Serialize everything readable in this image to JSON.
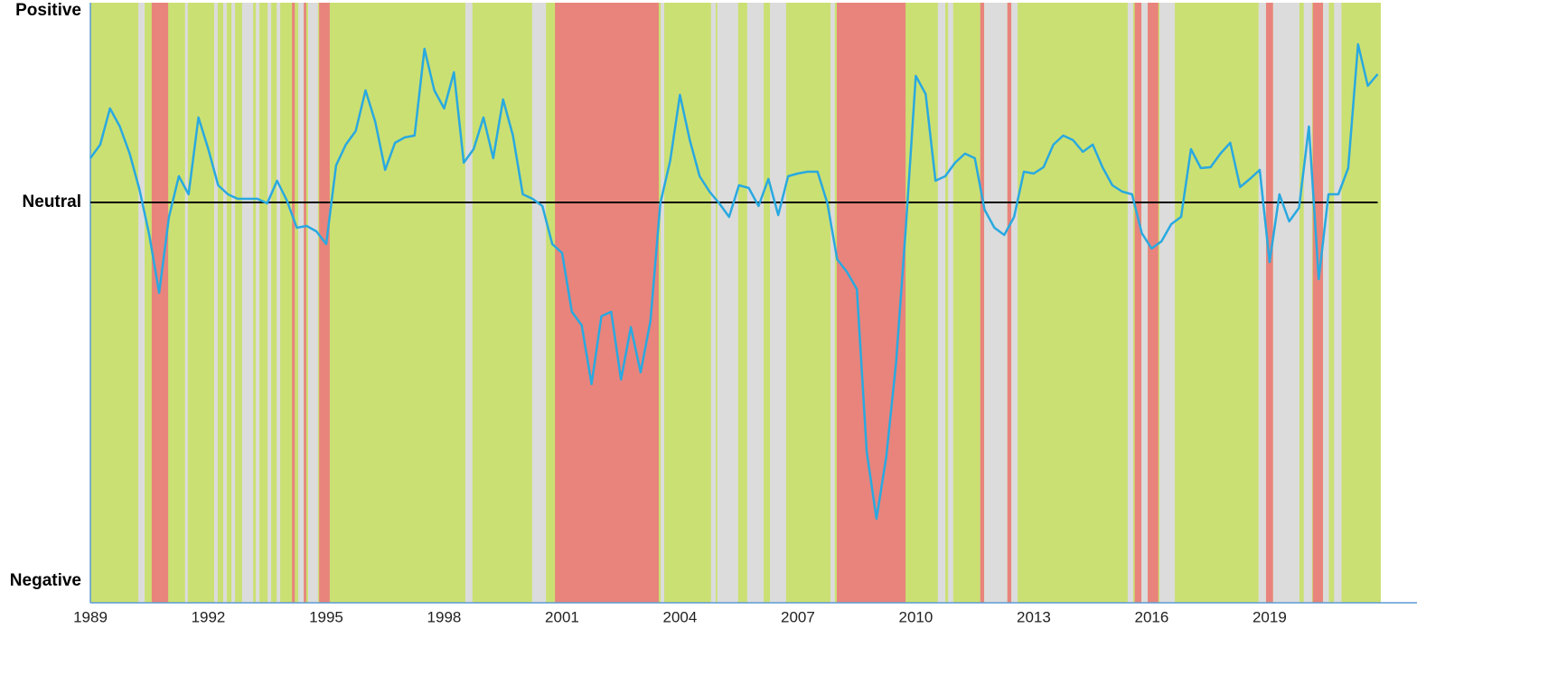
{
  "chart_data": {
    "type": "line",
    "x": [
      1989,
      1989.25,
      1989.5,
      1989.75,
      1990,
      1990.25,
      1990.5,
      1990.75,
      1991,
      1991.25,
      1991.5,
      1991.75,
      1992,
      1992.25,
      1992.5,
      1992.75,
      1993,
      1993.25,
      1993.5,
      1993.75,
      1994,
      1994.25,
      1994.5,
      1994.75,
      1995,
      1995.25,
      1995.5,
      1995.75,
      1996,
      1996.25,
      1996.5,
      1996.75,
      1997,
      1997.25,
      1997.5,
      1997.75,
      1998,
      1998.25,
      1998.5,
      1998.75,
      1999,
      1999.25,
      1999.5,
      1999.75,
      2000,
      2000.25,
      2000.5,
      2000.75,
      2001,
      2001.25,
      2001.5,
      2001.75,
      2002,
      2002.25,
      2002.5,
      2002.75,
      2003,
      2003.25,
      2003.5,
      2003.75,
      2004,
      2004.25,
      2004.5,
      2004.75,
      2005,
      2005.25,
      2005.5,
      2005.75,
      2006,
      2006.25,
      2006.5,
      2006.75,
      2007,
      2007.25,
      2007.5,
      2007.75,
      2008,
      2008.25,
      2008.5,
      2008.75,
      2009,
      2009.25,
      2009.5,
      2009.75,
      2010,
      2010.25,
      2010.5,
      2010.75,
      2011,
      2011.25,
      2011.5,
      2011.75,
      2012,
      2012.25,
      2012.5,
      2012.75,
      2013,
      2013.25,
      2013.5,
      2013.75,
      2014,
      2014.25,
      2014.5,
      2014.75,
      2015,
      2015.25,
      2015.5,
      2015.75,
      2016,
      2016.25,
      2016.5,
      2016.75,
      2017,
      2017.25,
      2017.5,
      2017.75,
      2018,
      2018.25,
      2018.5,
      2018.75,
      2019,
      2019.25,
      2019.5,
      2019.75,
      2020,
      2020.25,
      2020.5,
      2020.75,
      2021,
      2021.25,
      2021.5,
      2021.75
    ],
    "series": [
      {
        "color": "#29a9e0",
        "values": [
          49,
          64,
          104,
          84,
          54,
          14,
          -36,
          -100,
          -16,
          29,
          9,
          94,
          59,
          19,
          9,
          4,
          4,
          4,
          -1,
          24,
          2,
          -28,
          -26,
          -32,
          -46,
          41,
          64,
          79,
          124,
          89,
          36,
          66,
          72,
          74,
          170,
          124,
          104,
          144,
          44,
          59,
          94,
          49,
          114,
          74,
          9,
          4,
          -4,
          -46,
          -56,
          -121,
          -136,
          -201,
          -126,
          -121,
          -196,
          -138,
          -188,
          -131,
          -1,
          46,
          119,
          69,
          29,
          12,
          -1,
          -16,
          19,
          16,
          -4,
          26,
          -14,
          29,
          32,
          34,
          34,
          -1,
          -63,
          -77,
          -96,
          -276,
          -350,
          -281,
          -176,
          -26,
          140,
          120,
          24,
          29,
          44,
          54,
          49,
          -8,
          -28,
          -36,
          -16,
          34,
          32,
          39,
          64,
          74,
          69,
          56,
          64,
          39,
          19,
          12,
          9,
          -34,
          -51,
          -43,
          -24,
          -16,
          59,
          38,
          39,
          54,
          66,
          17,
          26,
          36,
          -66,
          9,
          -21,
          -6,
          84,
          -85,
          9,
          9,
          38,
          175,
          129,
          142
        ]
      }
    ],
    "bands": {
      "x0": [
        1989,
        1990.22,
        1990.56,
        1991.41,
        1992.15,
        1992.38,
        1992.59,
        1992.86,
        1993.21,
        1993.51,
        1993.74,
        1994.13,
        1994.29,
        1994.43,
        1994.54,
        1994.82,
        1998.54,
        2000.24,
        2000.82,
        2003.51,
        2004.79,
        2004.95,
        2005.71,
        2006.29,
        2007.83,
        2007.99,
        2010.56,
        2010.82,
        2011.64,
        2011.74,
        2012.33,
        2012.43,
        2015.39,
        2015.57,
        2015.74,
        2015.9,
        2016.2,
        2018.72,
        2018.91,
        2019.09,
        2019.87,
        2020.1,
        2020.36,
        2020.64
      ],
      "x1": [
        2021.83,
        1990.38,
        1990.98,
        1991.48,
        1992.24,
        1992.47,
        1992.68,
        1993.14,
        1993.3,
        1993.6,
        1993.83,
        1994.2,
        1994.43,
        1994.49,
        1994.79,
        1995.09,
        1998.72,
        2000.59,
        2003.46,
        2003.6,
        2004.91,
        2005.48,
        2006.13,
        2006.7,
        2007.94,
        2009.74,
        2010.75,
        2010.95,
        2011.74,
        2012.33,
        2012.43,
        2012.59,
        2015.53,
        2015.74,
        2015.9,
        2016.17,
        2016.59,
        2018.91,
        2019.09,
        2019.76,
        2020.08,
        2020.36,
        2020.51,
        2020.83
      ],
      "colors": [
        "#cbe073",
        "#dcdcdc",
        "#e8847c",
        "#dcdcdc",
        "#dcdcdc",
        "#dcdcdc",
        "#dcdcdc",
        "#dcdcdc",
        "#dcdcdc",
        "#dcdcdc",
        "#dcdcdc",
        "#e8847c",
        "#dcdcdc",
        "#e8847c",
        "#dcdcdc",
        "#e8847c",
        "#dcdcdc",
        "#dcdcdc",
        "#e8847c",
        "#dcdcdc",
        "#dcdcdc",
        "#dcdcdc",
        "#dcdcdc",
        "#dcdcdc",
        "#dcdcdc",
        "#e8847c",
        "#dcdcdc",
        "#dcdcdc",
        "#e8847c",
        "#dcdcdc",
        "#e8847c",
        "#dcdcdc",
        "#dcdcdc",
        "#e8847c",
        "#dcdcdc",
        "#e8847c",
        "#dcdcdc",
        "#dcdcdc",
        "#e8847c",
        "#dcdcdc",
        "#dcdcdc",
        "#e8847c",
        "#dcdcdc",
        "#dcdcdc"
      ]
    },
    "hline": 0,
    "xlim": [
      1989,
      2022.75
    ],
    "xticks": [
      1989,
      1992,
      1995,
      1998,
      2001,
      2004,
      2007,
      2010,
      2013,
      2016,
      2019
    ],
    "ylim": [
      -443,
      221
    ],
    "yticks": [
      {
        "value": 212,
        "label": "Positive"
      },
      {
        "value": 0,
        "label": "Neutral"
      },
      {
        "value": -419,
        "label": "Negative"
      }
    ]
  }
}
